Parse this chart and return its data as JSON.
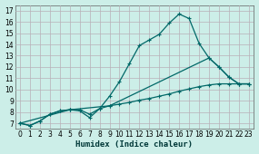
{
  "title": "",
  "xlabel": "Humidex (Indice chaleur)",
  "ylabel": "",
  "bg_color": "#cceee8",
  "grid_color": "#b8b0b8",
  "line_color": "#006868",
  "xlim": [
    -0.5,
    23.5
  ],
  "ylim": [
    6.5,
    17.5
  ],
  "xticks": [
    0,
    1,
    2,
    3,
    4,
    5,
    6,
    7,
    8,
    9,
    10,
    11,
    12,
    13,
    14,
    15,
    16,
    17,
    18,
    19,
    20,
    21,
    22,
    23
  ],
  "yticks": [
    7,
    8,
    9,
    10,
    11,
    12,
    13,
    14,
    15,
    16,
    17
  ],
  "line1_x": [
    0,
    1,
    2,
    3,
    4,
    5,
    6,
    7,
    8,
    9,
    10,
    11,
    12,
    13,
    14,
    15,
    16,
    17,
    18,
    19,
    20,
    21,
    22,
    23
  ],
  "line1_y": [
    7.0,
    6.8,
    7.2,
    7.8,
    8.1,
    8.2,
    8.2,
    7.8,
    8.3,
    9.4,
    10.7,
    12.3,
    13.9,
    14.4,
    14.9,
    15.9,
    16.7,
    16.3,
    14.1,
    12.8,
    12.0,
    11.1,
    10.5,
    10.5
  ],
  "line2_x": [
    0,
    1,
    2,
    3,
    4,
    5,
    6,
    7,
    8,
    9,
    10,
    11,
    12,
    13,
    14,
    15,
    16,
    17,
    18,
    19,
    20,
    21,
    22,
    23
  ],
  "line2_y": [
    7.0,
    6.8,
    7.2,
    7.8,
    8.1,
    8.2,
    8.1,
    7.5,
    8.3,
    8.55,
    8.7,
    8.85,
    9.05,
    9.2,
    9.4,
    9.6,
    9.85,
    10.05,
    10.25,
    10.4,
    10.5,
    10.5,
    10.5,
    10.5
  ],
  "line3_x": [
    0,
    5,
    9,
    19,
    20,
    21,
    22,
    23
  ],
  "line3_y": [
    7.0,
    8.2,
    8.55,
    12.8,
    12.0,
    11.1,
    10.5,
    10.5
  ]
}
